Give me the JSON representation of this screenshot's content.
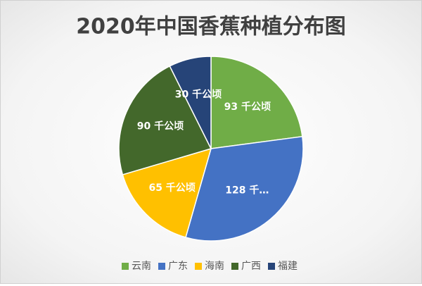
{
  "chart_data": {
    "type": "pie",
    "title": "2020年中国香蕉种植分布图",
    "categories": [
      "云南",
      "广东",
      "海南",
      "广西",
      "福建"
    ],
    "values": [
      93,
      128,
      65,
      90,
      30
    ],
    "value_labels": [
      "93 千公顷",
      "128 千…",
      "65 千公顷",
      "90 千公顷",
      "30 千公顷"
    ],
    "colors": [
      "#70ad47",
      "#4472c4",
      "#ffc000",
      "#43682b",
      "#264478"
    ],
    "legend": "bottom"
  }
}
